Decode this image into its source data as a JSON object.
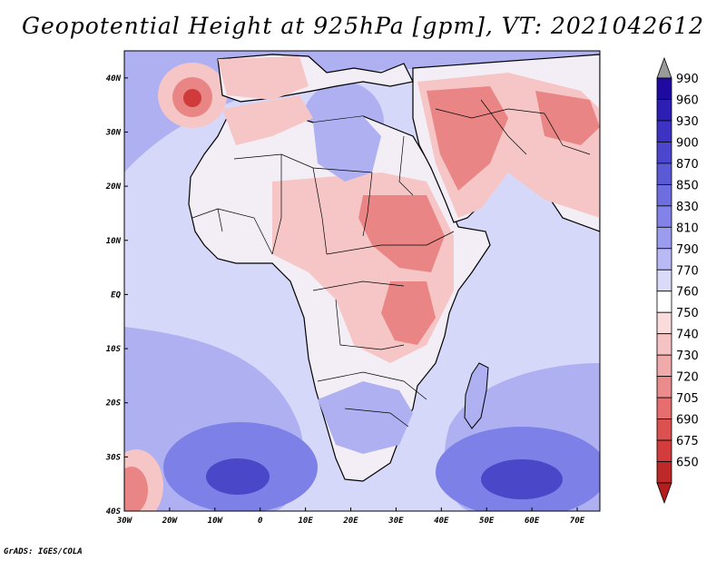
{
  "title": "Geopotential Height at 925hPa [gpm], VT: 2021042612",
  "credit": "GrADS: IGES/COLA",
  "axes": {
    "lat_labels": [
      "40N",
      "30N",
      "20N",
      "10N",
      "EQ",
      "10S",
      "20S",
      "30S",
      "40S"
    ],
    "lon_labels": [
      "30W",
      "20W",
      "10W",
      "0",
      "10E",
      "20E",
      "30E",
      "40E",
      "50E",
      "60E",
      "70E"
    ],
    "lat_range": [
      -40,
      45
    ],
    "lon_range": [
      -30,
      75
    ]
  },
  "colorbar": {
    "levels": [
      "990",
      "960",
      "930",
      "900",
      "870",
      "850",
      "830",
      "810",
      "790",
      "770",
      "760",
      "750",
      "740",
      "730",
      "720",
      "705",
      "690",
      "675",
      "650"
    ],
    "colors": [
      "#1e0aa0",
      "#2d1eb4",
      "#3c32c3",
      "#4b46cd",
      "#5a5ad7",
      "#6e6ee1",
      "#8282e8",
      "#9b9bef",
      "#b9b9f5",
      "#dadaf9",
      "#ffffff",
      "#fadcdc",
      "#f5c3c3",
      "#f0aaaa",
      "#eb8c8c",
      "#e66e6e",
      "#dc5050",
      "#d23c3c",
      "#be2828"
    ],
    "top_arrow_color": "#9a9a9a",
    "bottom_arrow_color": "#b41e1e"
  },
  "field_colors": {
    "ocean": "#d6d8fa",
    "land": "#f3eef6",
    "low_strong": "#cf3a3a",
    "low_mid": "#e98585",
    "low_light": "#f6c6c6",
    "high_light": "#aeb0f1",
    "high_mid": "#7d80e6",
    "high_strong": "#4a47c9",
    "outline": "#000000"
  }
}
